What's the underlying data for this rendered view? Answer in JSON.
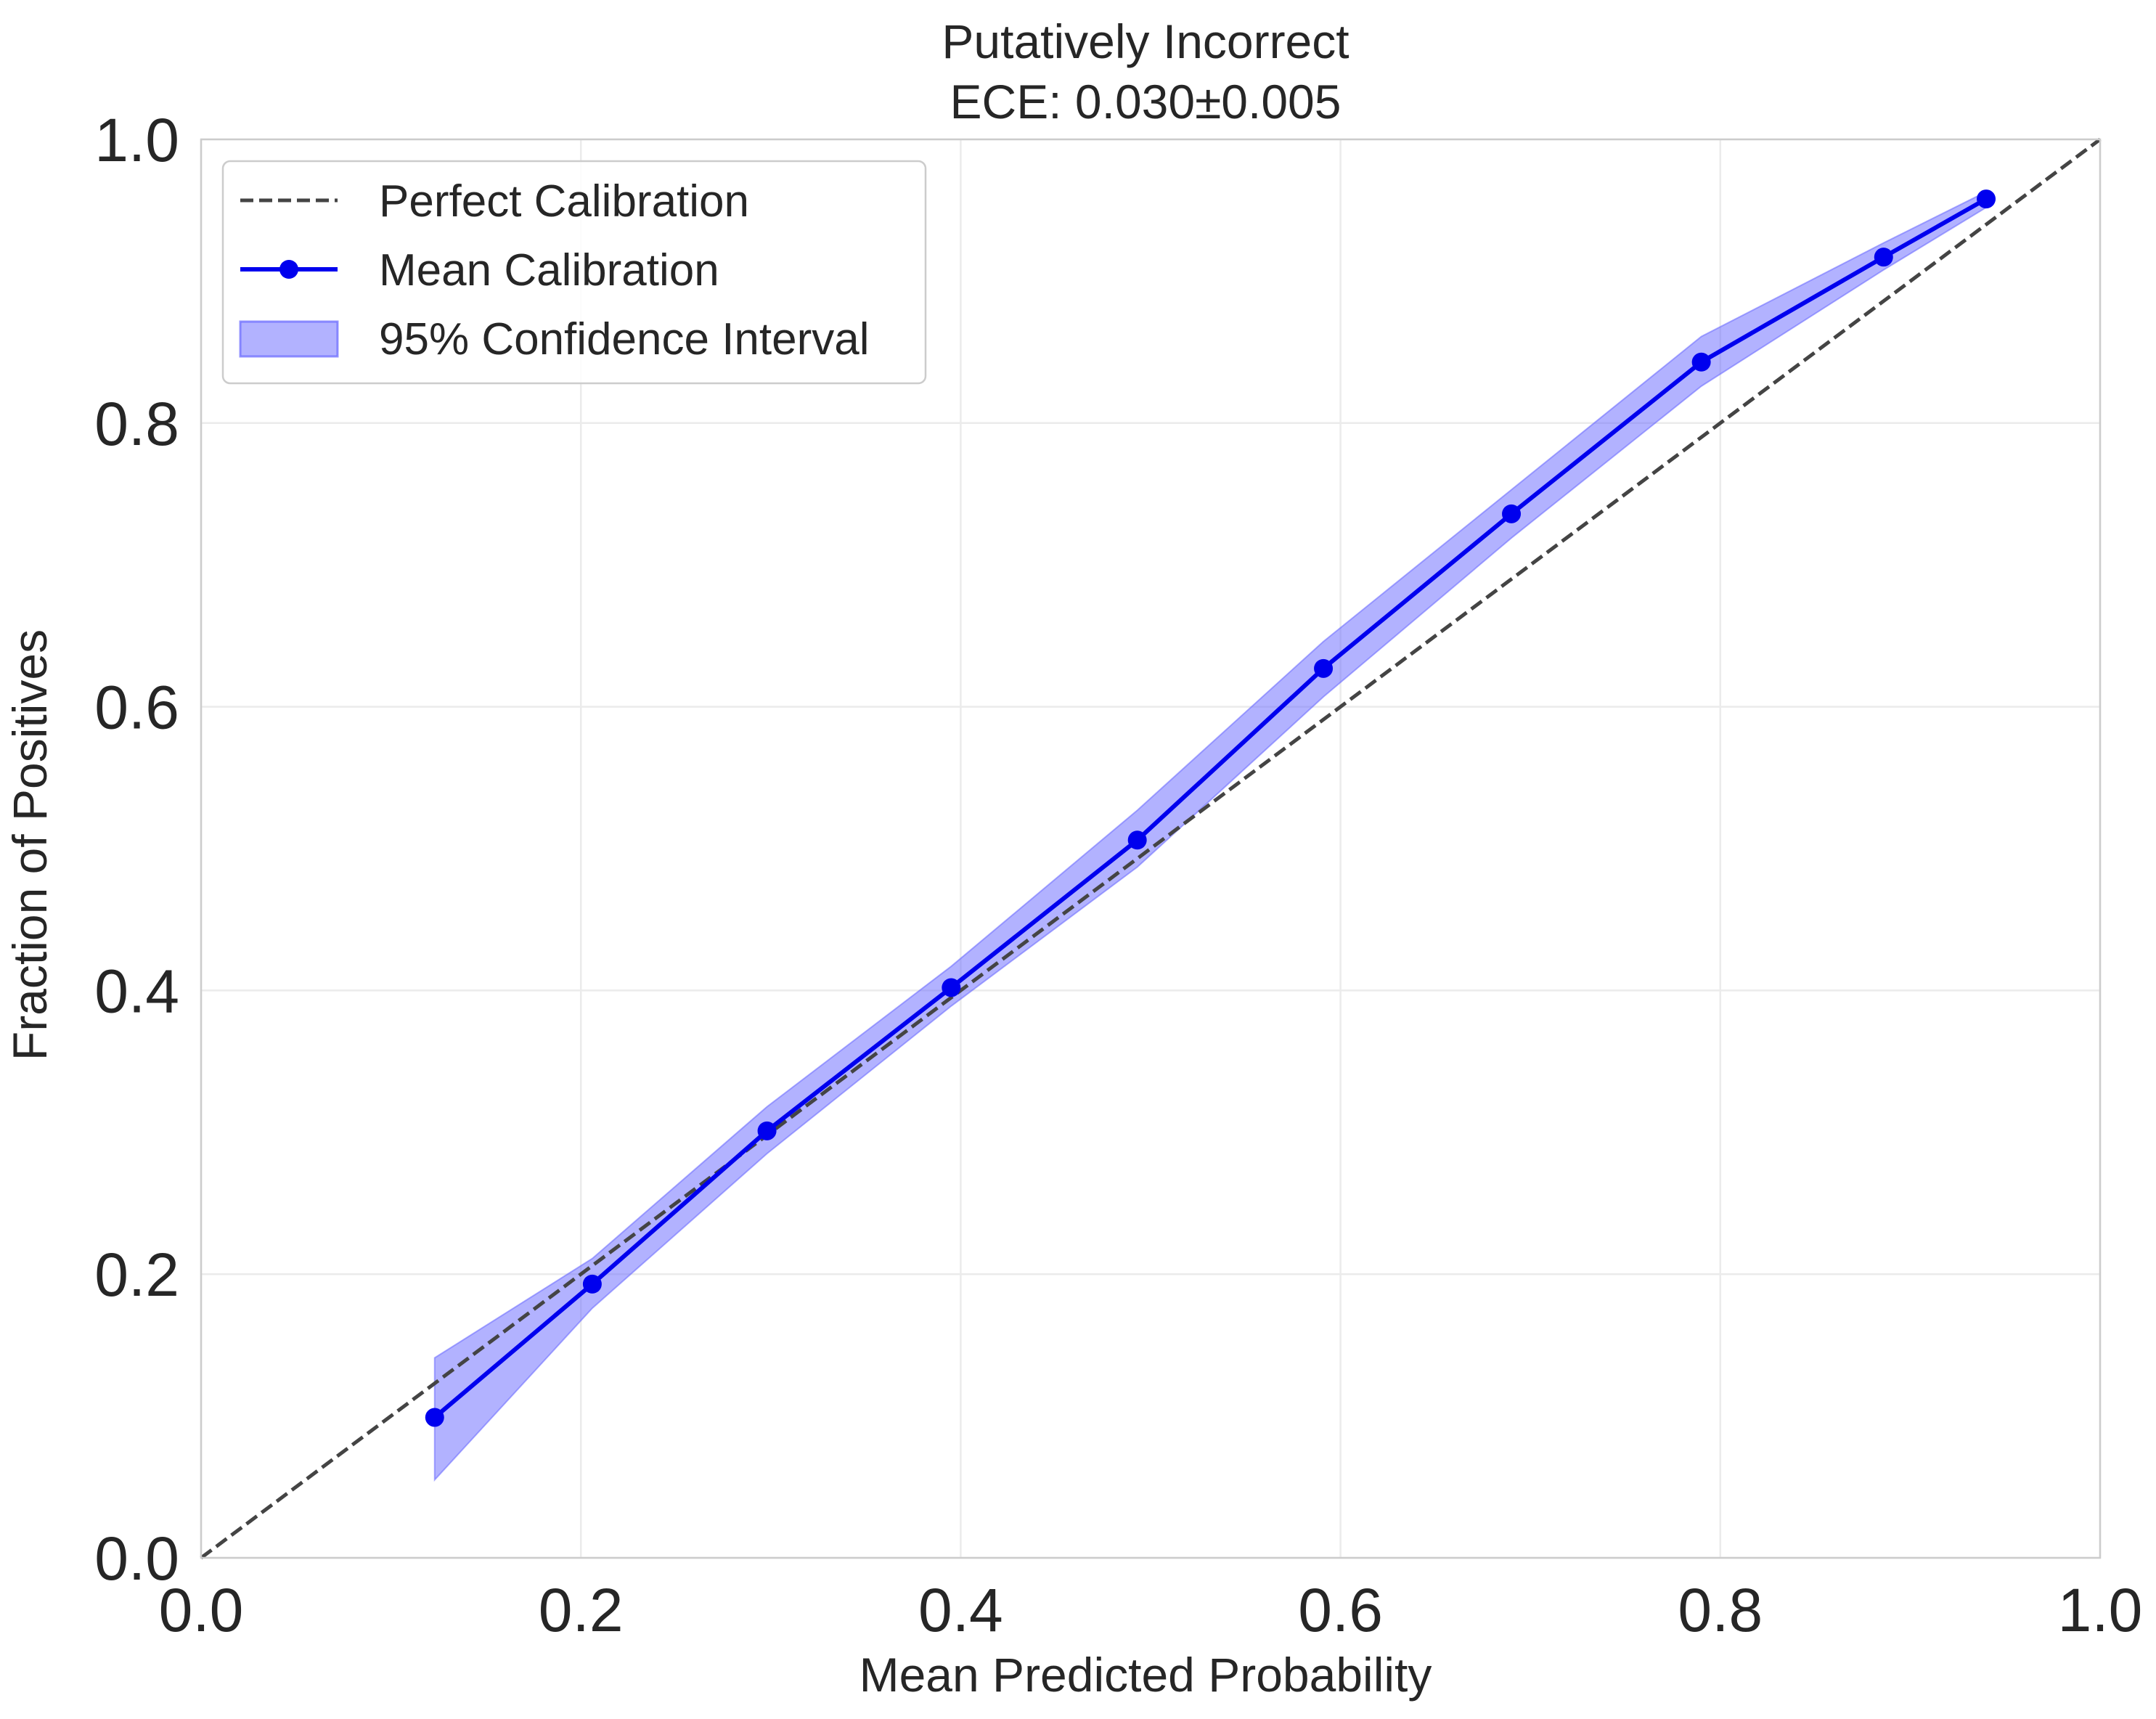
{
  "chart_data": {
    "type": "line",
    "title": "Putatively Incorrect",
    "subtitle": "ECE: 0.030±0.005",
    "xlabel": "Mean Predicted Probability",
    "ylabel": "Fraction of Positives",
    "xlim": [
      0.0,
      1.0
    ],
    "ylim": [
      0.0,
      1.0
    ],
    "grid": true,
    "legend_position": "top-left",
    "x_ticks": [
      0.0,
      0.2,
      0.4,
      0.6,
      0.8,
      1.0
    ],
    "y_ticks": [
      0.0,
      0.2,
      0.4,
      0.6,
      0.8,
      1.0
    ],
    "x_tick_labels": [
      "0.0",
      "0.2",
      "0.4",
      "0.6",
      "0.8",
      "1.0"
    ],
    "y_tick_labels": [
      "0.0",
      "0.2",
      "0.4",
      "0.6",
      "0.8",
      "1.0"
    ],
    "series": [
      {
        "name": "Perfect Calibration",
        "style": "dashed",
        "color": "#444444",
        "x": [
          0.0,
          1.0
        ],
        "y": [
          0.0,
          1.0
        ]
      },
      {
        "name": "Mean Calibration",
        "style": "solid-markers",
        "color": "#0000ee",
        "x": [
          0.123,
          0.206,
          0.298,
          0.395,
          0.493,
          0.591,
          0.69,
          0.79,
          0.886,
          0.94
        ],
        "y": [
          0.099,
          0.193,
          0.301,
          0.402,
          0.506,
          0.627,
          0.736,
          0.843,
          0.917,
          0.958
        ],
        "ci_lower": [
          0.055,
          0.176,
          0.285,
          0.389,
          0.487,
          0.607,
          0.719,
          0.826,
          0.908,
          0.952
        ],
        "ci_upper": [
          0.141,
          0.211,
          0.318,
          0.417,
          0.527,
          0.646,
          0.753,
          0.861,
          0.927,
          0.963
        ]
      }
    ],
    "band": {
      "name": "95% Confidence Interval",
      "color": "#6666ff"
    }
  }
}
